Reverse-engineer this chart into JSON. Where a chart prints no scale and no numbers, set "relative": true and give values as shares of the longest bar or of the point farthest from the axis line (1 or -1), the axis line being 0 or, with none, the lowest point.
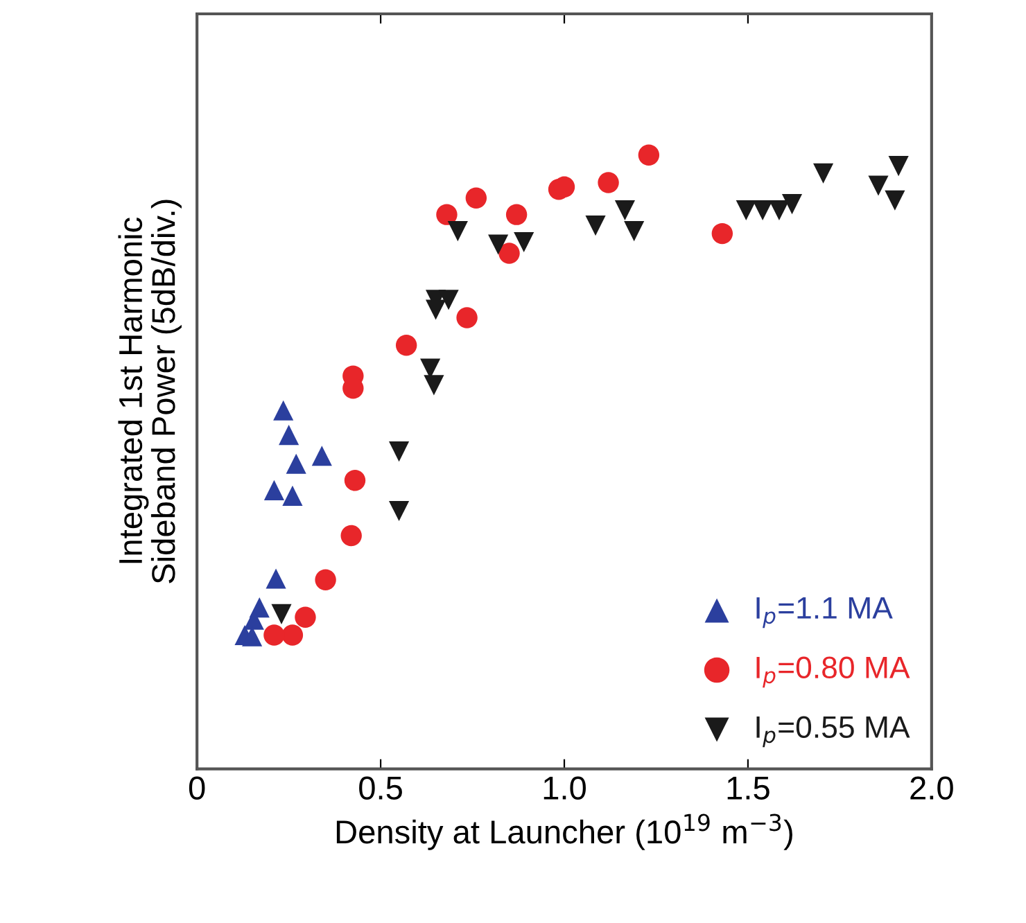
{
  "chart_data": {
    "type": "scatter",
    "xlabel": "Density at Launcher (10$^{19}$ m$^{−3}$)",
    "ylabel": "Integrated 1st Harmonic\nSideband Power (5dB/div.)",
    "relative": true,
    "xlim": [
      0,
      2.0
    ],
    "xticks": [
      0,
      0.5,
      {
        "value": 1,
        "label": "1.0"
      },
      1.5,
      {
        "value": 2,
        "label": "2.0"
      }
    ],
    "legend": "bottom right",
    "grid": false,
    "series": [
      {
        "name": "I$_{p}$=1.1 MA",
        "color": "#2b3f9e",
        "marker": "triangle",
        "x": [
          0.235,
          0.25,
          0.27,
          0.34,
          0.21,
          0.26,
          0.215,
          0.17,
          0.155,
          0.13,
          0.15
        ],
        "values": [
          0.584,
          0.544,
          0.497,
          0.51,
          0.454,
          0.445,
          0.31,
          0.263,
          0.243,
          0.218,
          0.216
        ]
      },
      {
        "name": "I$_{p}$=0.80 MA",
        "color": "#e8262a",
        "marker": "circle",
        "x": [
          0.425,
          0.425,
          0.43,
          0.42,
          0.35,
          0.295,
          0.26,
          0.21,
          0.57,
          0.735,
          0.68,
          0.76,
          0.87,
          0.85,
          0.985,
          1.0,
          1.12,
          1.23,
          1.43
        ],
        "values": [
          0.64,
          0.62,
          0.47,
          0.38,
          0.308,
          0.247,
          0.218,
          0.218,
          0.69,
          0.735,
          0.903,
          0.93,
          0.903,
          0.84,
          0.944,
          0.948,
          0.955,
          1.0,
          0.872
        ]
      },
      {
        "name": "I$_{p}$=0.55 MA",
        "color": "#1a1a1a",
        "marker": "triangle-down",
        "x": [
          0.71,
          0.82,
          0.89,
          0.65,
          0.685,
          0.65,
          0.635,
          0.645,
          1.085,
          1.165,
          1.19,
          1.495,
          1.54,
          1.585,
          1.62,
          1.705,
          1.855,
          1.91,
          1.9,
          0.55,
          0.55,
          0.23
        ],
        "values": [
          0.876,
          0.854,
          0.858,
          0.764,
          0.764,
          0.748,
          0.652,
          0.625,
          0.885,
          0.91,
          0.876,
          0.91,
          0.91,
          0.91,
          0.92,
          0.97,
          0.95,
          0.982,
          0.926,
          0.517,
          0.42,
          0.252
        ]
      }
    ]
  }
}
